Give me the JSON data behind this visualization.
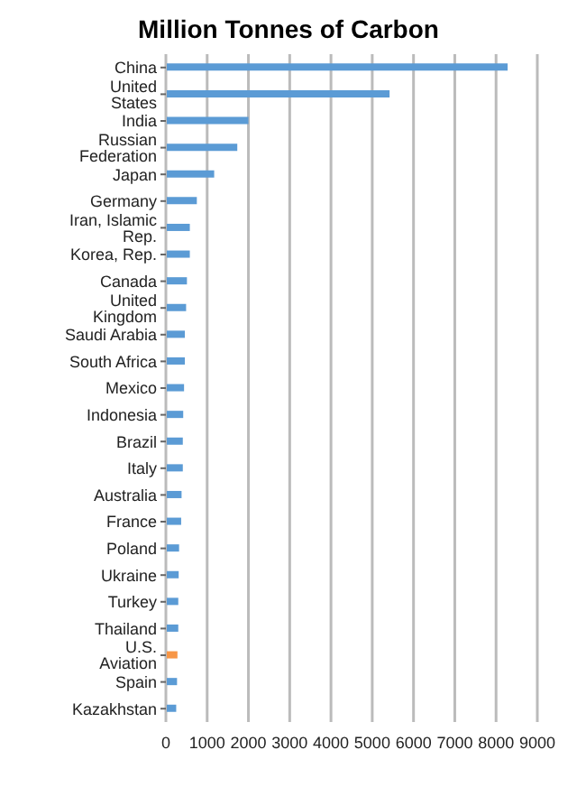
{
  "chart_data": {
    "type": "bar",
    "orientation": "horizontal",
    "title": "Million Tonnes of Carbon",
    "categories": [
      "China",
      "United States",
      "India",
      "Russian Federation",
      "Japan",
      "Germany",
      "Iran, Islamic Rep.",
      "Korea, Rep.",
      "Canada",
      "United Kingdom",
      "Saudi Arabia",
      "South Africa",
      "Mexico",
      "Indonesia",
      "Brazil",
      "Italy",
      "Australia",
      "France",
      "Poland",
      "Ukraine",
      "Turkey",
      "Thailand",
      "U.S. Aviation",
      "Spain",
      "Kazakhstan"
    ],
    "values": [
      8280,
      5420,
      2000,
      1730,
      1170,
      750,
      580,
      580,
      510,
      490,
      460,
      460,
      440,
      420,
      410,
      410,
      380,
      370,
      320,
      310,
      300,
      300,
      280,
      270,
      250
    ],
    "colors": [
      "#5b9bd5",
      "#5b9bd5",
      "#5b9bd5",
      "#5b9bd5",
      "#5b9bd5",
      "#5b9bd5",
      "#5b9bd5",
      "#5b9bd5",
      "#5b9bd5",
      "#5b9bd5",
      "#5b9bd5",
      "#5b9bd5",
      "#5b9bd5",
      "#5b9bd5",
      "#5b9bd5",
      "#5b9bd5",
      "#5b9bd5",
      "#5b9bd5",
      "#5b9bd5",
      "#5b9bd5",
      "#5b9bd5",
      "#5b9bd5",
      "#f79646",
      "#5b9bd5",
      "#5b9bd5"
    ],
    "xlim": [
      0,
      9000
    ],
    "xticks": [
      0,
      1000,
      2000,
      3000,
      4000,
      5000,
      6000,
      7000,
      8000,
      9000
    ],
    "grid": "x"
  }
}
